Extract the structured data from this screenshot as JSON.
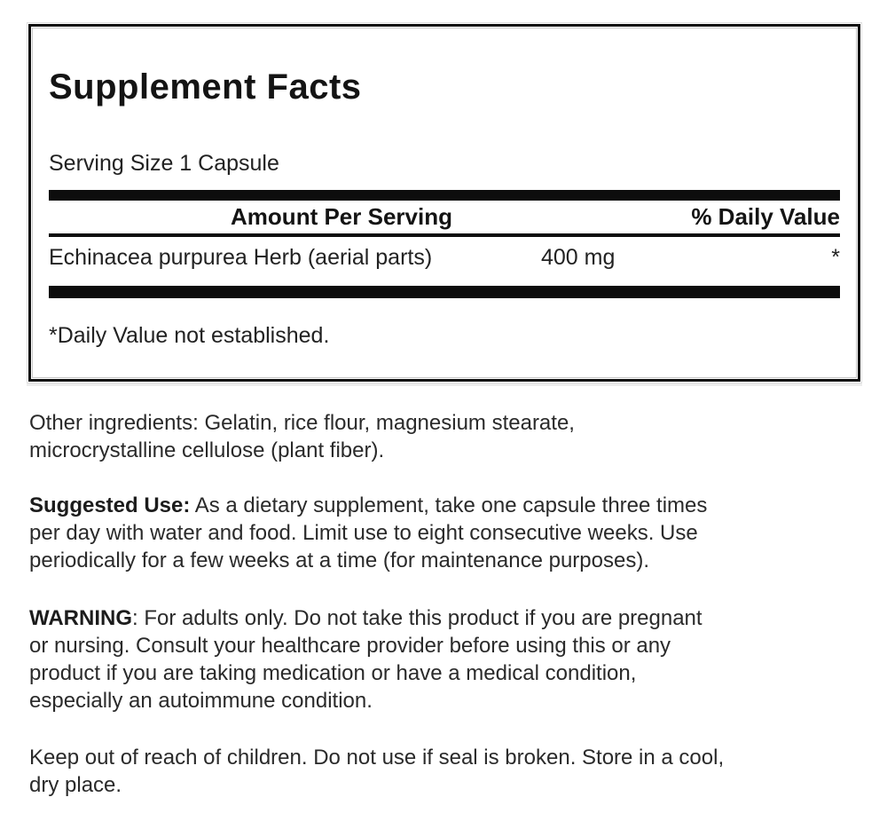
{
  "panel": {
    "title": "Supplement Facts",
    "serving_size": "Serving Size 1 Capsule",
    "table": {
      "amount_header": "Amount Per Serving",
      "dv_header": "% Daily Value",
      "row": {
        "name": "Echinacea purpurea Herb (aerial parts)",
        "amount": "400 mg",
        "dv": "*"
      },
      "footnote": "*Daily Value not established."
    }
  },
  "sections": {
    "other_ingredients": {
      "lines": [
        "Other ingredients: Gelatin, rice flour, magnesium stearate,",
        "microcrystalline cellulose (plant fiber)."
      ]
    },
    "suggested_use": {
      "lead": "Suggested Use:",
      "lines": [
        " As a dietary supplement, take one capsule three times",
        "per day with water and food. Limit use to eight consecutive weeks. Use",
        "periodically for a few weeks at a time (for maintenance purposes)."
      ]
    },
    "warning": {
      "lead": "WARNING",
      "lines": [
        ": For adults only. Do not take this product if you are pregnant",
        "or nursing. Consult your healthcare provider before using this or any",
        "product if you are taking medication or have a medical condition,",
        "especially an autoimmune condition."
      ]
    },
    "storage": {
      "lines": [
        "Keep out of reach of children. Do not use if seal is broken. Store in a cool,",
        "dry place."
      ]
    }
  },
  "colors": {
    "text": "#1d1d1d",
    "paragraph_text": "#2a2a2a",
    "bar": "#0d0d0d",
    "panel_border": "#0e0e0e",
    "inner_border": "#c6c6c6",
    "background": "#ffffff"
  }
}
